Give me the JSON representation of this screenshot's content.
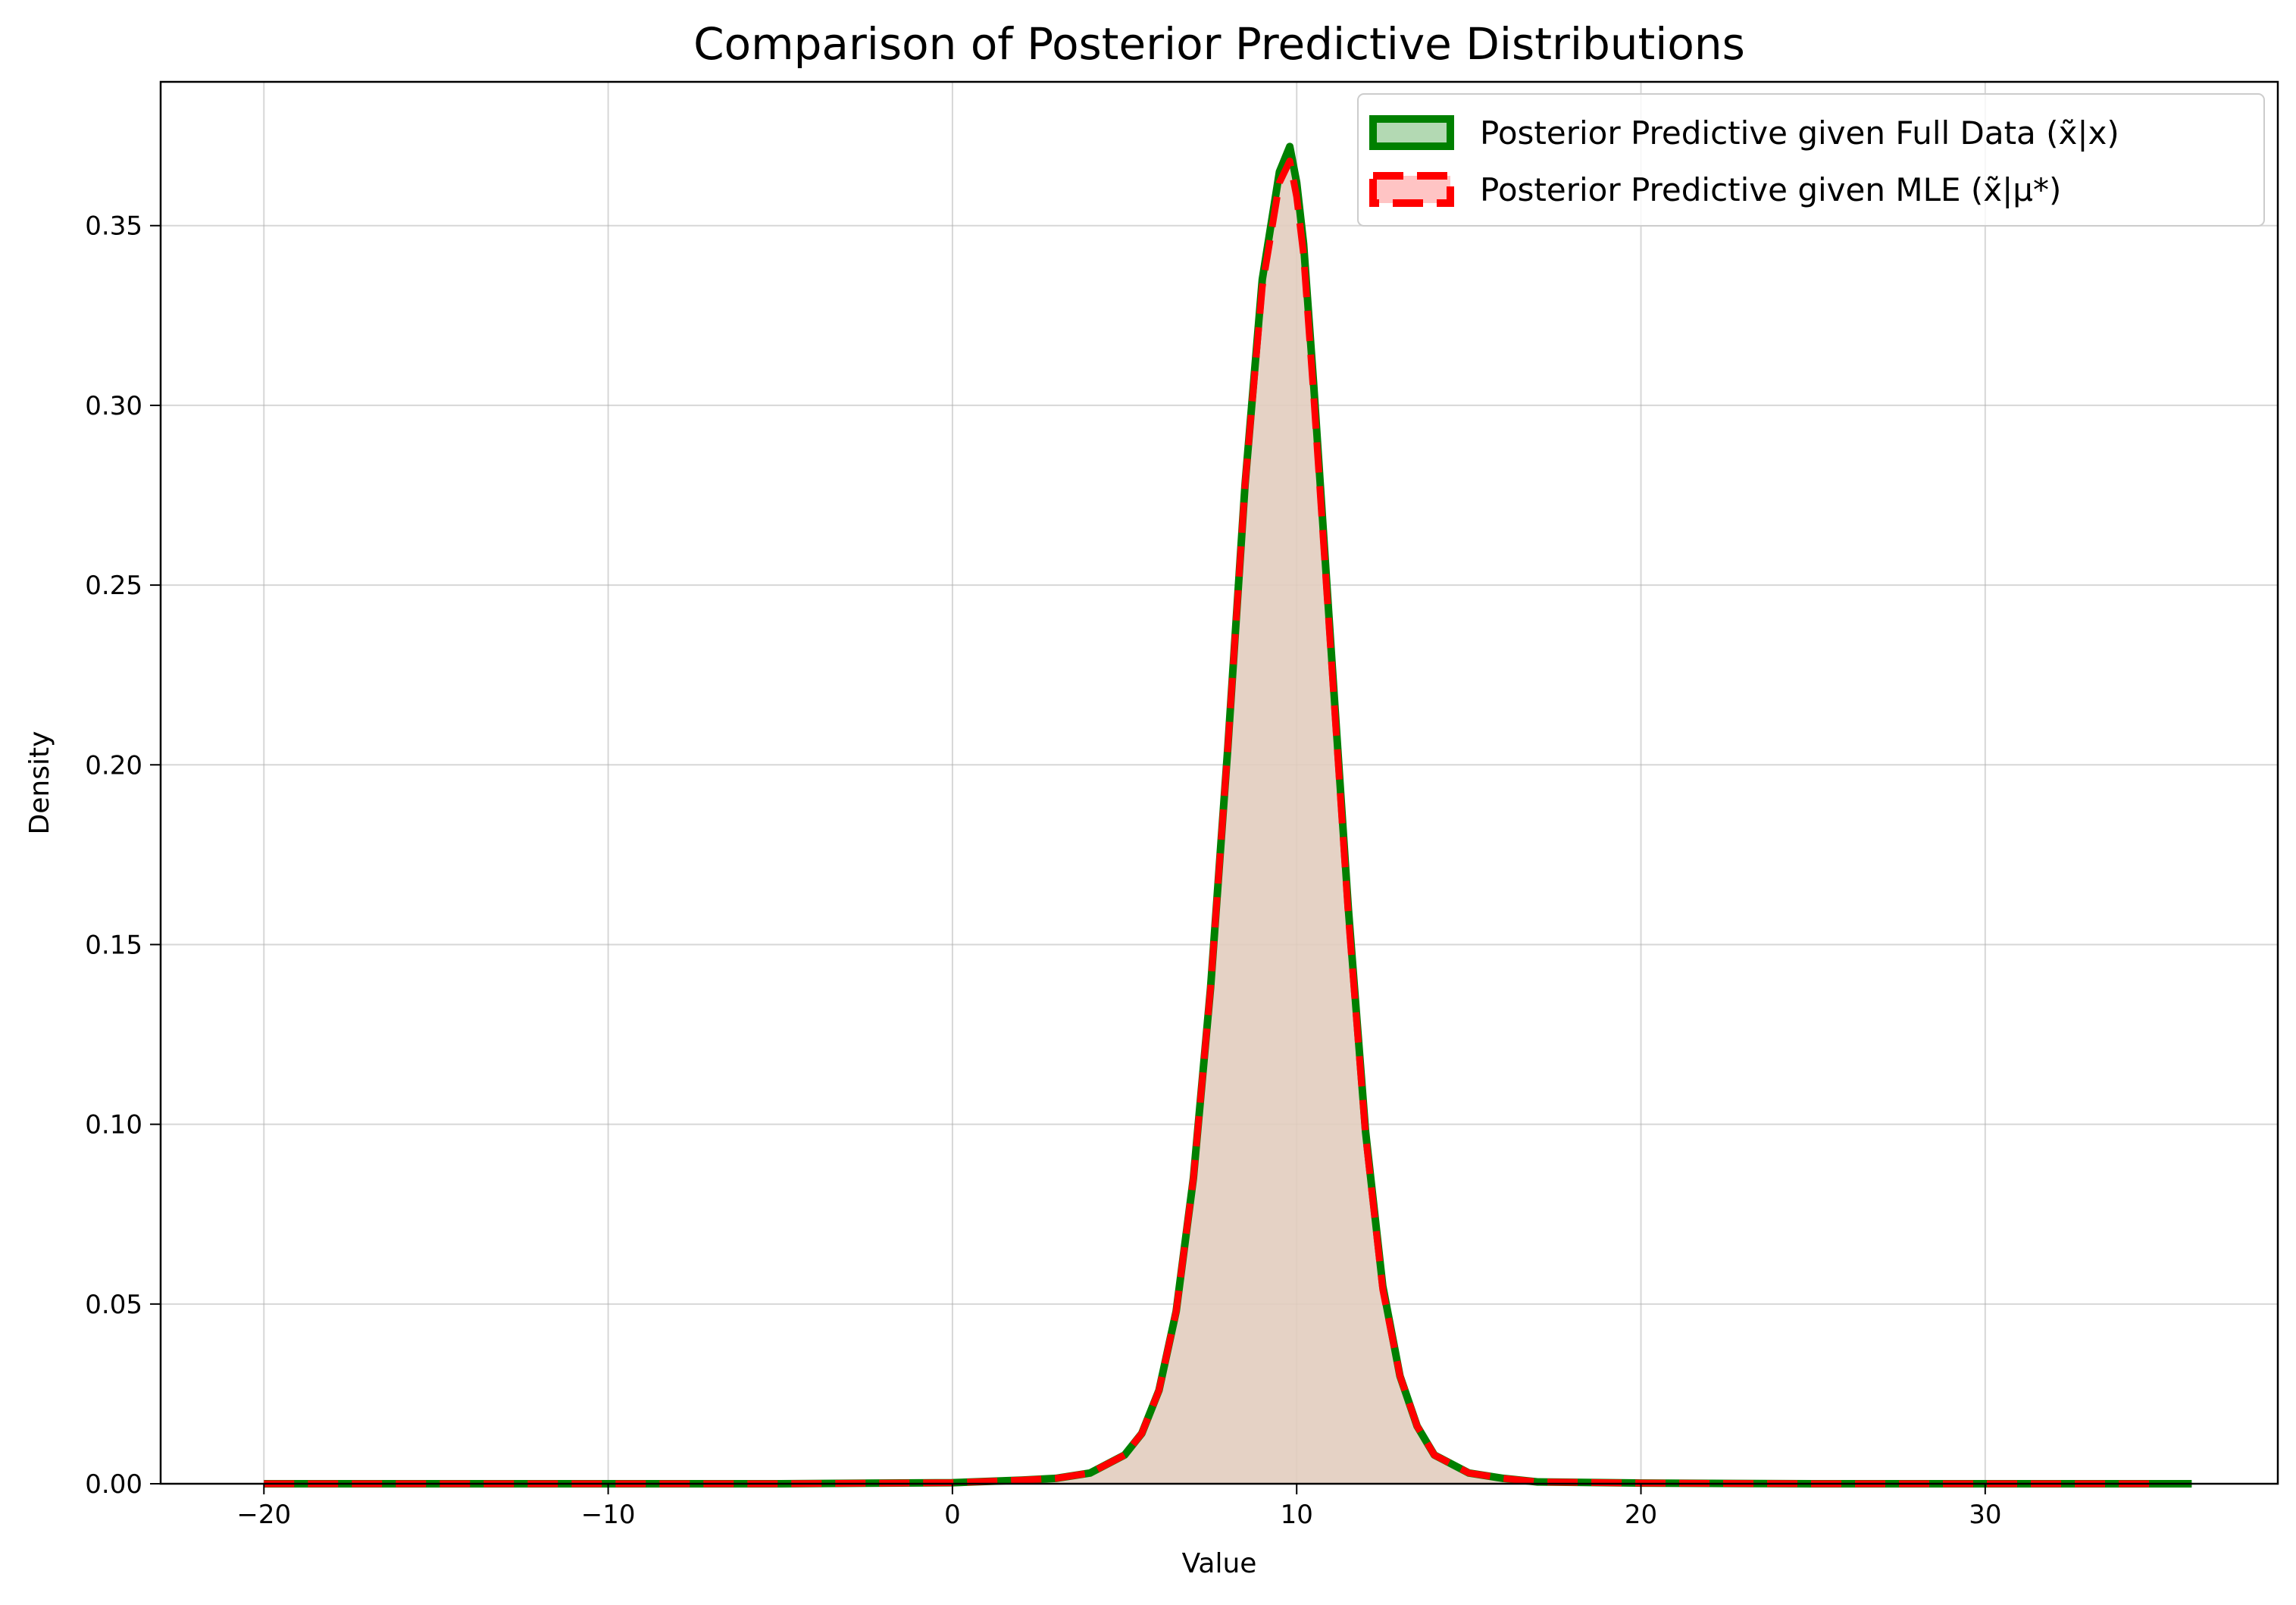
{
  "chart_data": {
    "type": "area",
    "title": "Comparison of Posterior Predictive Distributions",
    "xlabel": "Value",
    "ylabel": "Density",
    "xlim": [
      -23,
      38.5
    ],
    "ylim": [
      0,
      0.39
    ],
    "xticks": [
      -20,
      -10,
      0,
      10,
      20,
      30
    ],
    "xtick_labels": [
      "−20",
      "−10",
      "0",
      "10",
      "20",
      "30"
    ],
    "yticks": [
      0.0,
      0.05,
      0.1,
      0.15,
      0.2,
      0.25,
      0.3,
      0.35
    ],
    "ytick_labels": [
      "0.00",
      "0.05",
      "0.10",
      "0.15",
      "0.20",
      "0.25",
      "0.30",
      "0.35"
    ],
    "grid": true,
    "legend_position": "top-right",
    "series": [
      {
        "name": "Posterior Predictive given Full Data (x̃|x)",
        "line_color": "#008000",
        "fill_color": "#b3d9b3",
        "line_style": "solid",
        "x": [
          -20,
          -10,
          -5,
          0,
          2,
          3,
          4,
          5,
          5.5,
          6,
          6.5,
          7,
          7.5,
          8,
          8.5,
          9,
          9.5,
          9.8,
          10,
          10.2,
          10.5,
          11,
          11.5,
          12,
          12.5,
          13,
          13.5,
          14,
          15,
          16,
          17,
          20,
          25,
          30,
          36
        ],
        "y": [
          0,
          0,
          0,
          0.0003,
          0.001,
          0.0015,
          0.003,
          0.008,
          0.014,
          0.026,
          0.048,
          0.085,
          0.138,
          0.205,
          0.278,
          0.335,
          0.365,
          0.372,
          0.362,
          0.345,
          0.305,
          0.232,
          0.16,
          0.098,
          0.055,
          0.03,
          0.016,
          0.008,
          0.003,
          0.0015,
          0.0005,
          0.0002,
          0,
          0,
          0
        ]
      },
      {
        "name": "Posterior Predictive given MLE (x̃|μ*)",
        "line_color": "#ff0000",
        "fill_color": "#ffc4c4",
        "line_style": "dashed",
        "x": [
          -20,
          -10,
          -5,
          0,
          2,
          3,
          4,
          5,
          5.5,
          6,
          6.5,
          7,
          7.5,
          8,
          8.5,
          9,
          9.5,
          9.8,
          10,
          10.2,
          10.5,
          11,
          11.5,
          12,
          12.5,
          13,
          13.5,
          14,
          15,
          16,
          17,
          20,
          25,
          30,
          35
        ],
        "y": [
          0,
          0,
          0,
          0.0003,
          0.001,
          0.0015,
          0.003,
          0.008,
          0.014,
          0.026,
          0.048,
          0.085,
          0.138,
          0.205,
          0.278,
          0.333,
          0.362,
          0.368,
          0.358,
          0.342,
          0.302,
          0.23,
          0.158,
          0.097,
          0.054,
          0.03,
          0.016,
          0.008,
          0.003,
          0.0015,
          0.0005,
          0.0002,
          0,
          0,
          0
        ]
      }
    ]
  }
}
